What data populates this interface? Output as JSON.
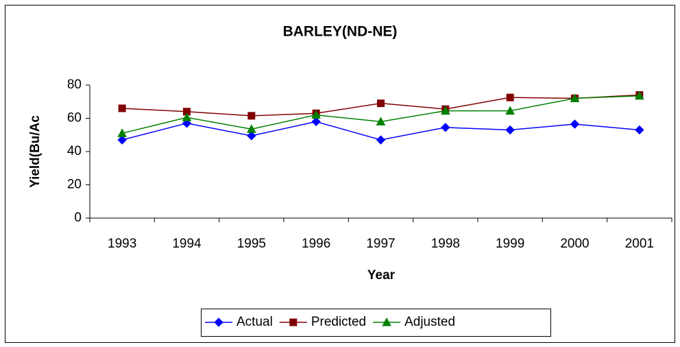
{
  "chart_data": {
    "type": "line",
    "title": "BARLEY(ND-NE)",
    "x_label": "Year",
    "y_label": "Yield(Bu/Ac",
    "categories": [
      "1993",
      "1994",
      "1995",
      "1996",
      "1997",
      "1998",
      "1999",
      "2000",
      "2001"
    ],
    "series": [
      {
        "name": "Actual",
        "color": "#0000ff",
        "marker": "diamond",
        "values": [
          47,
          57,
          49.5,
          58,
          47,
          54.5,
          53,
          56.5,
          53
        ]
      },
      {
        "name": "Predicted",
        "color": "#800000",
        "marker": "square",
        "values": [
          66,
          64,
          61.5,
          63,
          69,
          65.5,
          72.5,
          72,
          74
        ]
      },
      {
        "name": "Adjusted",
        "color": "#008000",
        "marker": "triangle",
        "values": [
          51,
          60.5,
          53.5,
          62,
          58,
          64.5,
          64.5,
          72,
          73.5
        ]
      }
    ],
    "ylim": [
      0,
      80
    ],
    "yticks": [
      0,
      20,
      40,
      60,
      80
    ],
    "grid": false,
    "legend": "bottom"
  }
}
